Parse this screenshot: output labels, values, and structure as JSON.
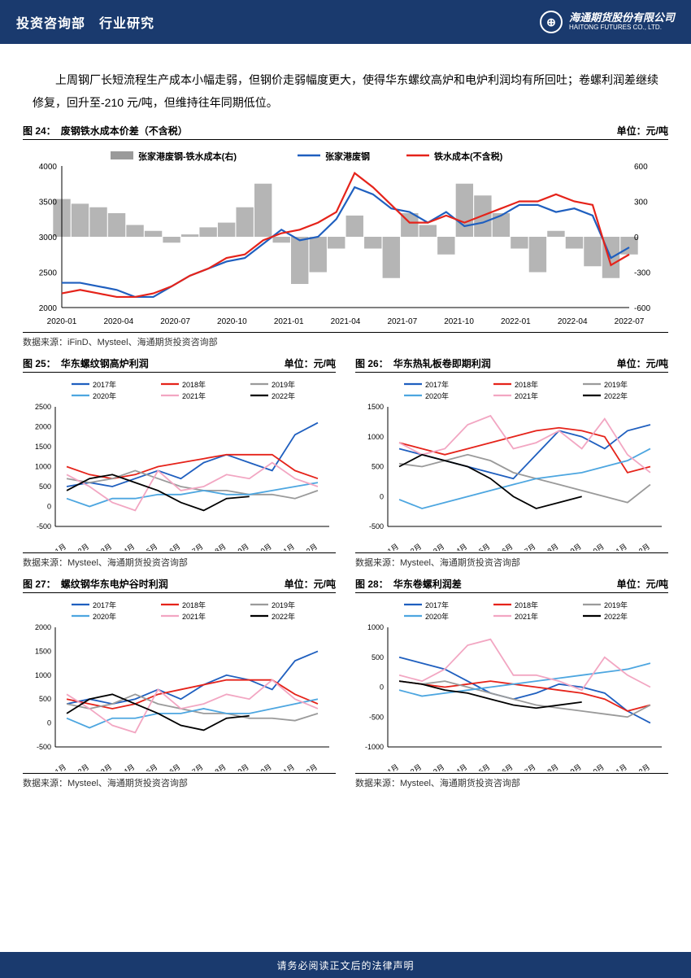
{
  "header": {
    "dept": "投资咨询部",
    "sep": "　",
    "section": "行业研究",
    "company_cn": "海通期货股份有限公司",
    "company_en": "HAITONG FUTURES CO., LTD."
  },
  "body_text": "上周钢厂长短流程生产成本小幅走弱，但钢价走弱幅度更大，使得华东螺纹高炉和电炉利润均有所回吐；卷螺利润差继续修复，回升至-210 元/吨，但维持往年同期低位。",
  "footer": "请务必阅读正文后的法律声明",
  "chart24": {
    "fig_label": "图 24：",
    "title": "废钢铁水成本价差（不含税）",
    "unit": "单位：元/吨",
    "source": "数据来源：iFinD、Mysteel、海通期货投资咨询部",
    "left_ylim": [
      2000,
      4000
    ],
    "left_ticks": [
      2000,
      2500,
      3000,
      3500,
      4000
    ],
    "right_ylim": [
      -600,
      600
    ],
    "right_ticks": [
      -600,
      -300,
      0,
      300,
      600
    ],
    "x_labels": [
      "2020-01",
      "2020-04",
      "2020-07",
      "2020-10",
      "2021-01",
      "2021-04",
      "2021-07",
      "2021-10",
      "2022-01",
      "2022-04",
      "2022-07"
    ],
    "legend": [
      {
        "label": "张家港废钢-铁水成本(右)",
        "color": "#9a9a9a",
        "type": "area"
      },
      {
        "label": "张家港废钢",
        "color": "#1f5fbf",
        "type": "line"
      },
      {
        "label": "铁水成本(不含税)",
        "color": "#e5231a",
        "type": "line"
      }
    ],
    "area_data": [
      320,
      280,
      250,
      200,
      100,
      50,
      -50,
      20,
      80,
      120,
      250,
      450,
      -50,
      -400,
      -300,
      -100,
      180,
      -100,
      -350,
      200,
      100,
      -150,
      450,
      350,
      200,
      -100,
      -300,
      50,
      -100,
      -250,
      -350,
      -150
    ],
    "blue_data": [
      2350,
      2350,
      2300,
      2250,
      2150,
      2150,
      2300,
      2450,
      2550,
      2650,
      2700,
      2900,
      3100,
      2950,
      3000,
      3250,
      3700,
      3600,
      3400,
      3350,
      3200,
      3350,
      3150,
      3200,
      3300,
      3450,
      3450,
      3350,
      3400,
      3300,
      2700,
      2850
    ],
    "red_data": [
      2200,
      2250,
      2200,
      2150,
      2150,
      2200,
      2300,
      2450,
      2550,
      2700,
      2750,
      2950,
      3050,
      3100,
      3200,
      3350,
      3900,
      3700,
      3450,
      3200,
      3200,
      3300,
      3200,
      3300,
      3400,
      3500,
      3500,
      3600,
      3500,
      3450,
      2600,
      2750
    ]
  },
  "small_charts": {
    "months": [
      "1月",
      "2月",
      "3月",
      "4月",
      "5月",
      "6月",
      "7月",
      "8月",
      "9月",
      "10月",
      "11月",
      "12月"
    ],
    "series_colors": {
      "2017年": "#1f5fbf",
      "2018年": "#e5231a",
      "2019年": "#9a9a9a",
      "2020年": "#4da6e0",
      "2021年": "#f2a6c2",
      "2022年": "#000000"
    },
    "series_order": [
      "2017年",
      "2018年",
      "2019年",
      "2020年",
      "2021年",
      "2022年"
    ]
  },
  "chart25": {
    "fig_label": "图 25：",
    "title": "华东螺纹钢高炉利润",
    "unit": "单位：元/吨",
    "source": "数据来源：Mysteel、海通期货投资咨询部",
    "ylim": [
      -500,
      2500
    ],
    "yticks": [
      -500,
      0,
      500,
      1000,
      1500,
      2000,
      2500
    ],
    "data": {
      "2017年": [
        500,
        600,
        500,
        700,
        900,
        700,
        1100,
        1300,
        1100,
        900,
        1800,
        2100
      ],
      "2018年": [
        1000,
        800,
        700,
        800,
        1000,
        1100,
        1200,
        1300,
        1300,
        1300,
        900,
        700
      ],
      "2019年": [
        700,
        600,
        700,
        900,
        700,
        500,
        400,
        400,
        300,
        300,
        200,
        400
      ],
      "2020年": [
        200,
        0,
        200,
        200,
        300,
        300,
        400,
        300,
        300,
        400,
        500,
        600
      ],
      "2021年": [
        800,
        500,
        100,
        -100,
        900,
        400,
        500,
        800,
        700,
        1100,
        700,
        500
      ],
      "2022年": [
        400,
        700,
        800,
        600,
        400,
        100,
        -100,
        200,
        250,
        null,
        null,
        null
      ]
    }
  },
  "chart26": {
    "fig_label": "图 26：",
    "title": "华东热轧板卷即期利润",
    "unit": "单位：元/吨",
    "source": "数据来源：Mysteel、海通期货投资咨询部",
    "ylim": [
      -500,
      1500
    ],
    "yticks": [
      -500,
      0,
      500,
      1000,
      1500
    ],
    "data": {
      "2017年": [
        800,
        700,
        600,
        500,
        400,
        300,
        700,
        1100,
        1000,
        800,
        1100,
        1200
      ],
      "2018年": [
        900,
        800,
        700,
        800,
        900,
        1000,
        1100,
        1150,
        1100,
        1000,
        400,
        500
      ],
      "2019年": [
        550,
        500,
        600,
        700,
        600,
        400,
        300,
        200,
        100,
        0,
        -100,
        200
      ],
      "2020年": [
        -50,
        -200,
        -100,
        0,
        100,
        200,
        300,
        350,
        400,
        500,
        600,
        800
      ],
      "2021年": [
        900,
        700,
        800,
        1200,
        1350,
        800,
        900,
        1100,
        800,
        1300,
        700,
        400
      ],
      "2022年": [
        500,
        700,
        600,
        500,
        300,
        0,
        -200,
        -100,
        0,
        null,
        null,
        null
      ]
    }
  },
  "chart27": {
    "fig_label": "图 27：",
    "title": "螺纹钢华东电炉谷时利润",
    "unit": "单位：元/吨",
    "source": "数据来源：Mysteel、海通期货投资咨询部",
    "ylim": [
      -500,
      2000
    ],
    "yticks": [
      -500,
      0,
      500,
      1000,
      1500,
      2000
    ],
    "data": {
      "2017年": [
        400,
        500,
        400,
        500,
        700,
        500,
        800,
        1000,
        900,
        700,
        1300,
        1500
      ],
      "2018年": [
        500,
        400,
        300,
        400,
        600,
        700,
        800,
        900,
        900,
        900,
        600,
        400
      ],
      "2019年": [
        400,
        300,
        400,
        600,
        400,
        300,
        200,
        200,
        100,
        100,
        50,
        200
      ],
      "2020年": [
        100,
        -100,
        100,
        100,
        200,
        200,
        300,
        200,
        200,
        300,
        400,
        500
      ],
      "2021年": [
        600,
        300,
        -50,
        -200,
        700,
        300,
        400,
        600,
        500,
        900,
        500,
        300
      ],
      "2022年": [
        200,
        500,
        600,
        400,
        200,
        -50,
        -150,
        100,
        150,
        null,
        null,
        null
      ]
    }
  },
  "chart28": {
    "fig_label": "图 28：",
    "title": "华东卷螺利润差",
    "unit": "单位：元/吨",
    "source": "数据来源：Mysteel、海通期货投资咨询部",
    "ylim": [
      -1000,
      1000
    ],
    "yticks": [
      -1000,
      -500,
      0,
      500,
      1000
    ],
    "data": {
      "2017年": [
        500,
        400,
        300,
        100,
        -100,
        -200,
        -100,
        50,
        0,
        -100,
        -400,
        -600
      ],
      "2018年": [
        100,
        50,
        0,
        50,
        100,
        50,
        0,
        -50,
        -100,
        -200,
        -400,
        -300
      ],
      "2019年": [
        100,
        50,
        100,
        0,
        -100,
        -200,
        -300,
        -350,
        -400,
        -450,
        -500,
        -300
      ],
      "2020年": [
        -50,
        -150,
        -100,
        -50,
        0,
        50,
        100,
        150,
        200,
        250,
        300,
        400
      ],
      "2021年": [
        200,
        100,
        300,
        700,
        800,
        200,
        200,
        100,
        -50,
        500,
        200,
        0
      ],
      "2022年": [
        100,
        50,
        -50,
        -100,
        -200,
        -300,
        -350,
        -300,
        -250,
        null,
        null,
        null
      ]
    }
  }
}
